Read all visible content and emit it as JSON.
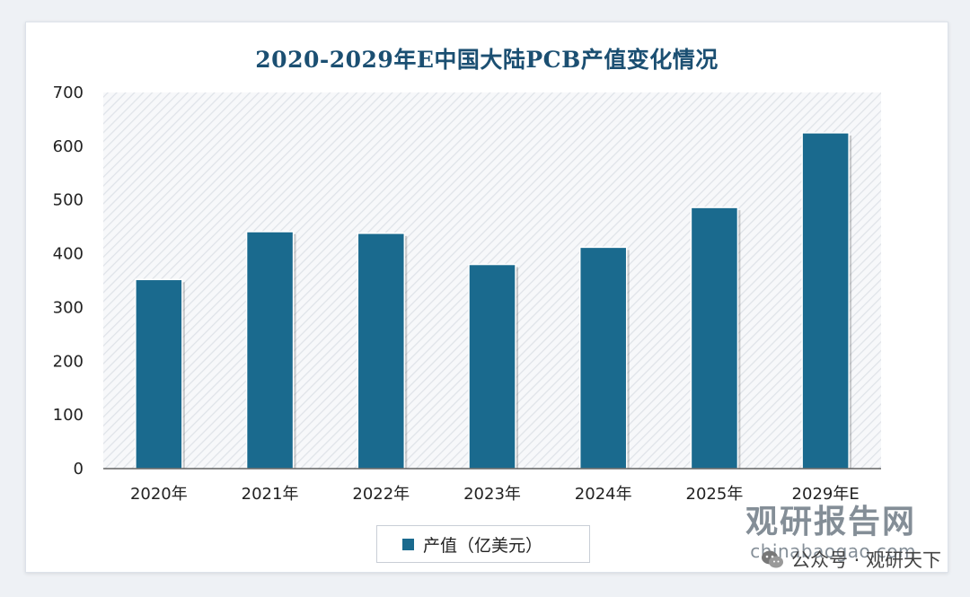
{
  "chart_data": {
    "type": "bar",
    "title": "2020-2029年E中国大陆PCB产值变化情况",
    "categories": [
      "2020年",
      "2021年",
      "2022年",
      "2023年",
      "2024年",
      "2025年",
      "2029年E"
    ],
    "series": [
      {
        "name": "产值（亿美元）",
        "values": [
          352,
          441,
          438,
          380,
          412,
          486,
          625
        ]
      }
    ],
    "y_ticks": [
      "0",
      "100",
      "200",
      "300",
      "400",
      "500",
      "600",
      "700"
    ],
    "ylim": [
      0,
      700
    ],
    "xlabel": "",
    "ylabel": "",
    "legend_position": "bottom-center",
    "grid": false,
    "colors": {
      "bar": "#1a6a8e",
      "title": "#1b4f72",
      "plot_hatch": "#e3e6ea"
    }
  },
  "watermark": {
    "brand": "观研报告网",
    "site": "chinabaogao.com",
    "account": "公众号 · 观研天下"
  }
}
